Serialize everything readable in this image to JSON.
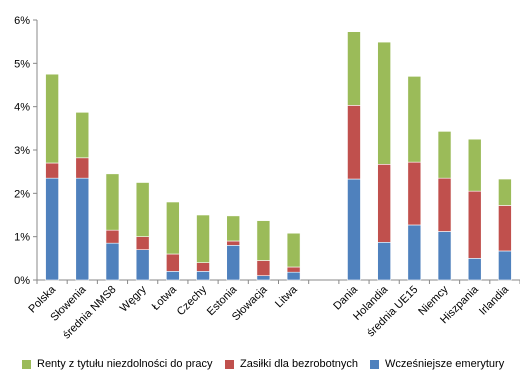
{
  "chart_data": {
    "type": "bar",
    "stacked": true,
    "categories": [
      "Polska",
      "Słowenia",
      "średnia NMS8",
      "Węgry",
      "Łotwa",
      "Czechy",
      "Estonia",
      "Słowacja",
      "Litwa",
      "",
      "Dania",
      "Holandia",
      "średnia UE15",
      "Niemcy",
      "Hiszpania",
      "Irlandia"
    ],
    "series": [
      {
        "name": "Wcześniejsze emerytury",
        "color": "#4F81BD",
        "values": [
          2.35,
          2.35,
          0.85,
          0.7,
          0.2,
          0.2,
          0.8,
          0.1,
          0.18,
          null,
          2.33,
          0.87,
          1.27,
          1.12,
          0.5,
          0.67
        ]
      },
      {
        "name": "Zasiłki dla bezrobotnych",
        "color": "#C0504D",
        "values": [
          0.35,
          0.47,
          0.3,
          0.3,
          0.4,
          0.2,
          0.1,
          0.35,
          0.12,
          null,
          1.7,
          1.8,
          1.45,
          1.23,
          1.55,
          1.05
        ]
      },
      {
        "name": "Renty z tytułu niezdolności do pracy",
        "color": "#9BBB59",
        "values": [
          2.05,
          1.05,
          1.3,
          1.25,
          1.2,
          1.1,
          0.58,
          0.92,
          0.78,
          null,
          1.7,
          2.82,
          1.98,
          1.08,
          1.2,
          0.61
        ]
      }
    ],
    "ylim": [
      0,
      6
    ],
    "yticks": [
      "0%",
      "1%",
      "2%",
      "3%",
      "4%",
      "5%",
      "6%"
    ],
    "legend": [
      "Renty z tytułu niezdolności do pracy",
      "Zasiłki dla bezrobotnych",
      "Wcześniejsze emerytury"
    ],
    "legend_position": "bottom",
    "grid": false
  }
}
